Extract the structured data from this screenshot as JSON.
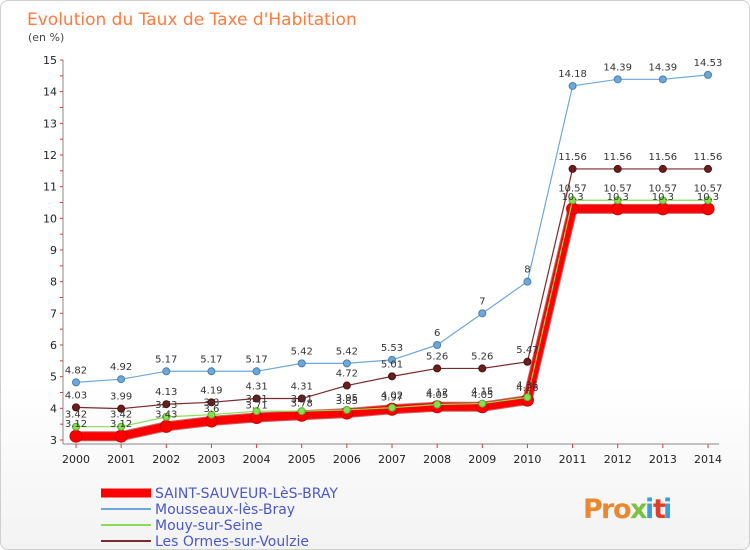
{
  "chart_data": {
    "type": "line",
    "title": "Evolution du Taux de Taxe d'Habitation",
    "subtitle": "(en %)",
    "xlabel": "",
    "ylabel": "",
    "x": [
      2000,
      2001,
      2002,
      2003,
      2004,
      2005,
      2006,
      2007,
      2008,
      2009,
      2010,
      2011,
      2012,
      2013,
      2014
    ],
    "ylim": [
      3,
      15
    ],
    "yticks": [
      3,
      4,
      5,
      6,
      7,
      8,
      9,
      10,
      11,
      12,
      13,
      14,
      15
    ],
    "grid": false,
    "legend_position": "bottom-left",
    "series": [
      {
        "name": "SAINT-SAUVEUR-LèS-BRAY",
        "color": "#ff0000",
        "values": [
          3.12,
          3.12,
          3.43,
          3.6,
          3.71,
          3.78,
          3.85,
          3.97,
          4.05,
          4.05,
          4.26,
          10.3,
          10.3,
          10.3,
          10.3
        ],
        "labels": [
          "3.12",
          "3.12",
          "3.43",
          "3.6",
          "3.71",
          "3.78",
          "3.85",
          "3.97",
          "4.05",
          "4.05",
          "4.26",
          "10.3",
          "10.3",
          "10.3",
          "10.3"
        ]
      },
      {
        "name": "Mousseaux-lès-Bray",
        "color": "#6ea8d8",
        "values": [
          4.82,
          4.92,
          5.17,
          5.17,
          5.17,
          5.42,
          5.42,
          5.53,
          6,
          7,
          8,
          14.18,
          14.39,
          14.39,
          14.53
        ],
        "labels": [
          "4.82",
          "4.92",
          "5.17",
          "5.17",
          "5.17",
          "5.42",
          "5.42",
          "5.53",
          "6",
          "7",
          "8",
          "14.18",
          "14.39",
          "14.39",
          "14.53"
        ]
      },
      {
        "name": "Mouy-sur-Seine",
        "color": "#88dd55",
        "values": [
          3.42,
          3.42,
          3.73,
          3.8,
          3.91,
          3.91,
          3.95,
          4.02,
          4.12,
          4.15,
          4.35,
          10.57,
          10.57,
          10.57,
          10.57
        ],
        "labels": [
          "3.42",
          "3.42",
          "3.73",
          "3.8",
          "3.91",
          "3.91",
          "3.95",
          "4.02",
          "4.12",
          "4.15",
          "4.35",
          "10.57",
          "10.57",
          "10.57",
          "10.57"
        ]
      },
      {
        "name": "Les Ormes-sur-Voulzie",
        "color": "#7a2a2a",
        "values": [
          4.03,
          3.99,
          4.13,
          4.19,
          4.31,
          4.31,
          4.72,
          5.01,
          5.26,
          5.26,
          5.47,
          11.56,
          11.56,
          11.56,
          11.56
        ],
        "labels": [
          "4.03",
          "3.99",
          "4.13",
          "4.19",
          "4.31",
          "4.31",
          "4.72",
          "5.01",
          "5.26",
          "5.26",
          "5.47",
          "11.56",
          "11.56",
          "11.56",
          "11.56"
        ]
      }
    ]
  },
  "branding": {
    "logo_text": "Proxiti",
    "logo_colors": [
      "#e8892f",
      "#3aa0d8",
      "#7cc242",
      "#e23d28"
    ]
  }
}
